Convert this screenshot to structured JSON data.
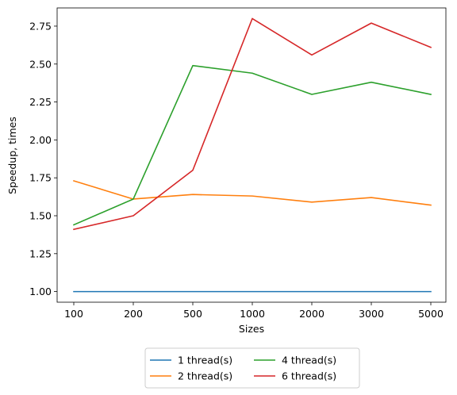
{
  "chart_data": {
    "type": "line",
    "categories": [
      "100",
      "200",
      "500",
      "1000",
      "2000",
      "3000",
      "5000"
    ],
    "xlabel": "Sizes",
    "ylabel": "Speedup, times",
    "ylim": [
      0.93,
      2.87
    ],
    "yticks": [
      1.0,
      1.25,
      1.5,
      1.75,
      2.0,
      2.25,
      2.5,
      2.75
    ],
    "ytick_labels": [
      "1.00",
      "1.25",
      "1.50",
      "1.75",
      "2.00",
      "2.25",
      "2.50",
      "2.75"
    ],
    "grid": false,
    "legend_position": "bottom-center",
    "legend_columns": 2,
    "series": [
      {
        "name": "1 thread(s)",
        "color": "#1f77b4",
        "values": [
          1.0,
          1.0,
          1.0,
          1.0,
          1.0,
          1.0,
          1.0
        ]
      },
      {
        "name": "2 thread(s)",
        "color": "#ff7f0e",
        "values": [
          1.73,
          1.61,
          1.64,
          1.63,
          1.59,
          1.62,
          1.57
        ]
      },
      {
        "name": "4 thread(s)",
        "color": "#2ca02c",
        "values": [
          1.44,
          1.61,
          2.49,
          2.44,
          2.3,
          2.38,
          2.3
        ]
      },
      {
        "name": "6 thread(s)",
        "color": "#d62728",
        "values": [
          1.41,
          1.5,
          1.8,
          2.8,
          2.56,
          2.77,
          2.61
        ]
      }
    ]
  }
}
